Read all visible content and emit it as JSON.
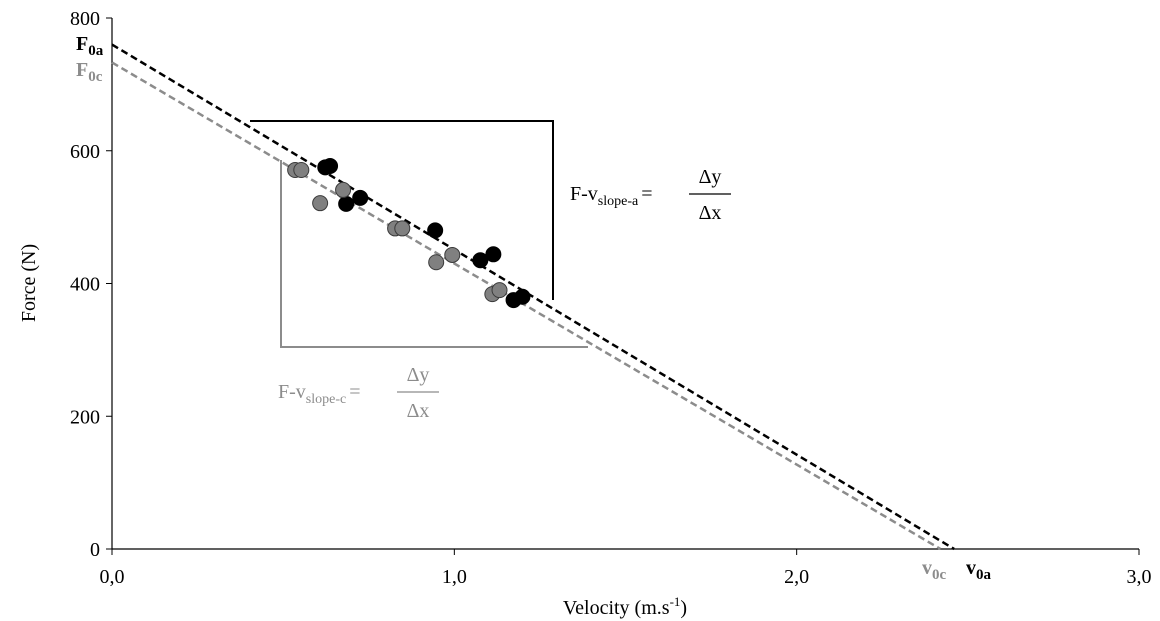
{
  "chart_data": {
    "type": "scatter",
    "xlabel": {
      "text": "Velocity (m.s",
      "sup": "-1",
      "after": ")"
    },
    "ylabel": "Force (N)",
    "xlim": [
      0,
      3
    ],
    "ylim": [
      0,
      800
    ],
    "xticks": [
      {
        "value": 0,
        "label": "0,0"
      },
      {
        "value": 1,
        "label": "1,0"
      },
      {
        "value": 2,
        "label": "2,0"
      },
      {
        "value": 3,
        "label": "3,0"
      }
    ],
    "yticks": [
      0,
      200,
      400,
      600,
      800
    ],
    "grid": false,
    "series": [
      {
        "color": "#000000",
        "x": [
          0.623,
          0.637,
          0.725,
          0.684,
          0.944,
          1.076,
          1.114,
          1.173,
          1.199
        ],
        "values": [
          575,
          577,
          529,
          520,
          480,
          435,
          444,
          375,
          380
        ]
      },
      {
        "color": "#808080",
        "x": [
          0.535,
          0.553,
          0.608,
          0.675,
          0.827,
          0.848,
          0.947,
          0.994,
          1.111,
          1.132
        ],
        "values": [
          571,
          571,
          521,
          541,
          483,
          483,
          432,
          443,
          384,
          390
        ]
      }
    ],
    "lines": [
      {
        "color": "#000000",
        "x": [
          0,
          2.46
        ],
        "y": [
          760,
          0
        ]
      },
      {
        "color": "#8c8c8c",
        "x": [
          0,
          2.42
        ],
        "y": [
          733,
          0
        ]
      }
    ],
    "intercept_labels": [
      {
        "text": "F",
        "sub": "0a",
        "color": "#000000"
      },
      {
        "text": "F",
        "sub": "0c",
        "color": "#8c8c8c"
      },
      {
        "text": "v",
        "sub": "0c",
        "color": "#8c8c8c"
      },
      {
        "text": "v",
        "sub": "0a",
        "color": "#000000"
      }
    ],
    "slope_labels": [
      {
        "text": "F-v",
        "sub": "slope-a",
        "equals": "=",
        "numerator": "Δy",
        "denominator": "Δx",
        "color": "#000000"
      },
      {
        "text": "F-v",
        "sub": "slope-c",
        "equals": "=",
        "numerator": "Δy",
        "denominator": "Δx",
        "color": "#8c8c8c"
      }
    ]
  }
}
